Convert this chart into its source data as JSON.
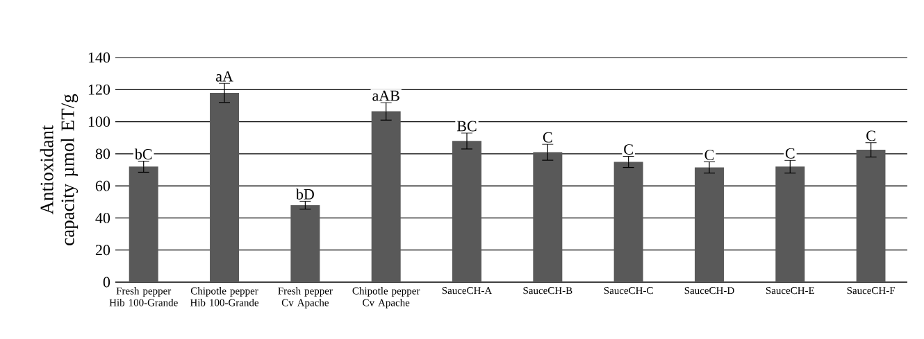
{
  "chart_data": {
    "type": "bar",
    "ylabel": "Antioxidant capacity µmol ET/g",
    "categories": [
      "Fresh pepper Hib 100-Grande",
      "Chipotle pepper Hib 100-Grande",
      "Fresh pepper Cv Apache",
      "Chipotle pepper Cv Apache",
      "SauceCH-A",
      "SauceCH-B",
      "SauceCH-C",
      "SauceCH-D",
      "SauceCH-E",
      "SauceCH-F"
    ],
    "values": [
      72,
      118,
      48,
      106.5,
      88,
      81,
      75,
      71.5,
      72,
      82.5
    ],
    "errors": [
      3.5,
      6,
      2.5,
      5.5,
      5,
      5,
      3.5,
      3.5,
      4,
      4.5
    ],
    "color": "#595959",
    "ylim": [
      0,
      140
    ],
    "yticks": [
      0,
      20,
      40,
      60,
      80,
      100,
      120,
      140
    ],
    "grid": "y",
    "annotations": [
      {
        "text": "bC",
        "x": "Fresh pepper Hib 100-Grande",
        "y": 75.5
      },
      {
        "text": "aA",
        "x": "Chipotle pepper Hib 100-Grande",
        "y": 124
      },
      {
        "text": "bD",
        "x": "Fresh pepper Cv Apache",
        "y": 50.5
      },
      {
        "text": "aAB",
        "x": "Chipotle pepper Cv Apache",
        "y": 112
      },
      {
        "text": "BC",
        "x": "SauceCH-A",
        "y": 93
      },
      {
        "text": "C",
        "x": "SauceCH-B",
        "y": 86
      },
      {
        "text": "C",
        "x": "SauceCH-C",
        "y": 78.5
      },
      {
        "text": "C",
        "x": "SauceCH-D",
        "y": 75
      },
      {
        "text": "C",
        "x": "SauceCH-E",
        "y": 76
      },
      {
        "text": "C",
        "x": "SauceCH-F",
        "y": 87
      }
    ]
  }
}
